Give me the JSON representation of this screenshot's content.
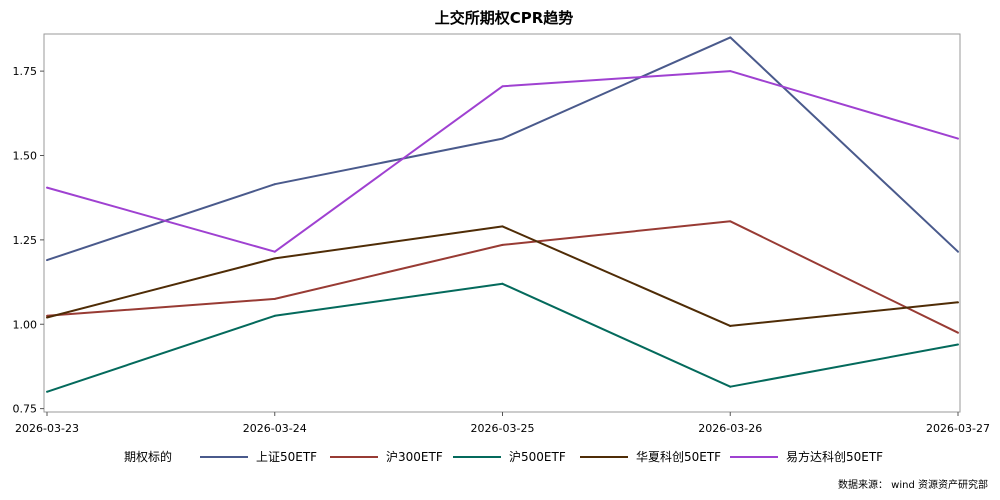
{
  "chart_data": {
    "type": "line",
    "title": "上交所期权CPR趋势",
    "xlabel": "",
    "ylabel": "",
    "x": [
      "2026-03-23",
      "2026-03-24",
      "2026-03-25",
      "2026-03-26",
      "2026-03-27"
    ],
    "ylim": [
      0.74,
      1.86
    ],
    "yticks": [
      "0.75",
      "1.00",
      "1.25",
      "1.50",
      "1.75"
    ],
    "legend_title": "期权标的",
    "legend_position": "bottom",
    "grid": false,
    "series": [
      {
        "name": "上证50ETF",
        "color": "#4a5a8c",
        "values": [
          1.19,
          1.415,
          1.55,
          1.85,
          1.215
        ]
      },
      {
        "name": "沪300ETF",
        "color": "#983b34",
        "values": [
          1.025,
          1.075,
          1.235,
          1.305,
          0.975
        ]
      },
      {
        "name": "沪500ETF",
        "color": "#046a5c",
        "values": [
          0.8,
          1.025,
          1.12,
          0.815,
          0.94
        ]
      },
      {
        "name": "华夏科创50ETF",
        "color": "#4f2c06",
        "values": [
          1.02,
          1.195,
          1.29,
          0.995,
          1.065
        ]
      },
      {
        "name": "易方达科创50ETF",
        "color": "#9f41d1",
        "values": [
          1.405,
          1.215,
          1.705,
          1.75,
          1.55
        ]
      }
    ],
    "source": "数据来源： wind 资源资产研究部"
  }
}
